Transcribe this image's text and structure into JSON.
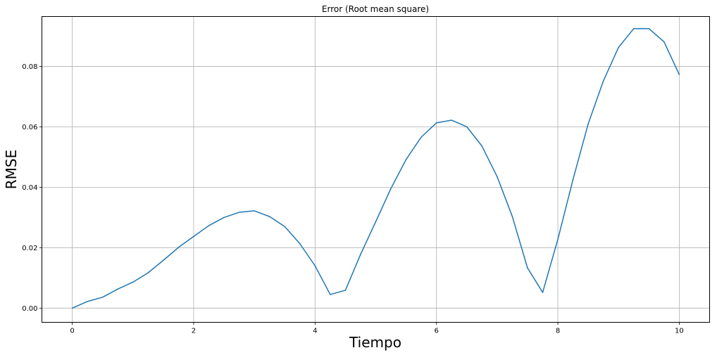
{
  "chart_data": {
    "type": "line",
    "title": "Error (Root mean square)",
    "xlabel": "Tiempo",
    "ylabel": "RMSE",
    "xlim": [
      -0.5,
      10.5
    ],
    "ylim": [
      -0.0047,
      0.0965
    ],
    "xticks": [
      0,
      2,
      4,
      6,
      8,
      10
    ],
    "xtick_labels": [
      "0",
      "2",
      "4",
      "6",
      "8",
      "10"
    ],
    "yticks": [
      0.0,
      0.02,
      0.04,
      0.06,
      0.08
    ],
    "ytick_labels": [
      "0.00",
      "0.02",
      "0.04",
      "0.06",
      "0.08"
    ],
    "grid": true,
    "line_color": "#1f77b4",
    "series": [
      {
        "x": [
          0,
          0.25,
          0.5,
          0.75,
          1.0,
          1.25,
          1.5,
          1.75,
          2.0,
          2.25,
          2.5,
          2.75,
          3.0,
          3.25,
          3.5,
          3.75,
          4.0,
          4.25,
          4.5,
          4.75,
          5.0,
          5.25,
          5.5,
          5.75,
          6.0,
          6.25,
          6.5,
          6.75,
          7.0,
          7.25,
          7.5,
          7.75,
          8.0,
          8.25,
          8.5,
          8.75,
          9.0,
          9.25,
          9.5,
          9.75,
          10.0
        ],
        "values": [
          0.0,
          0.0022,
          0.0036,
          0.0063,
          0.0086,
          0.0117,
          0.0158,
          0.0201,
          0.0237,
          0.0273,
          0.03,
          0.0317,
          0.0322,
          0.0303,
          0.027,
          0.0213,
          0.014,
          0.0045,
          0.0059,
          0.0178,
          0.0286,
          0.0396,
          0.0492,
          0.0566,
          0.0613,
          0.0622,
          0.06,
          0.0536,
          0.0435,
          0.0303,
          0.0133,
          0.0052,
          0.0228,
          0.0426,
          0.061,
          0.0752,
          0.0863,
          0.0925,
          0.0925,
          0.0881,
          0.0773
        ]
      }
    ]
  }
}
